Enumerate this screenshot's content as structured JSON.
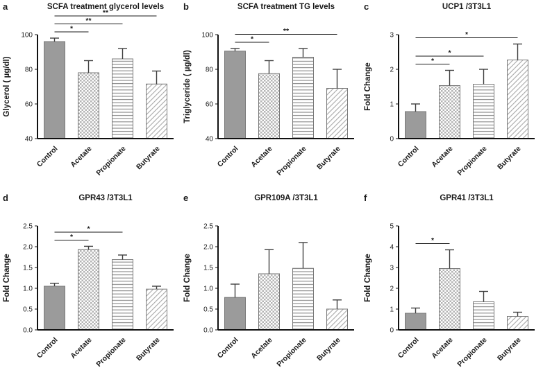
{
  "style": {
    "background": "#ffffff",
    "bar_gray": "#9b9b9b",
    "bar_stroke": "#787878",
    "pattern_gray": "#b4b4b4",
    "hline_gray": "#8f8f8f",
    "diag_gray": "#a8a8a8",
    "error_color": "#3f3f3f",
    "axis_color": "#111111",
    "text_color": "#1a1a1a"
  },
  "chart_data": [
    {
      "type": "bar",
      "letter": "a",
      "title": "SCFA treatment glycerol levels",
      "ylabel": "Glycerol ( µg/dl)",
      "xlabel": "",
      "categories": [
        "Control",
        "Acetate",
        "Propionate",
        "Butyrate"
      ],
      "patterns": [
        "solid",
        "checker",
        "hlines",
        "diag"
      ],
      "values": [
        96,
        78,
        86,
        71.5
      ],
      "errors": [
        2,
        7,
        6,
        7.5
      ],
      "ylim": [
        40,
        100
      ],
      "ytick_labels": [
        "40",
        "60",
        "80",
        "100"
      ],
      "significance": [
        {
          "from": 0,
          "to": 1,
          "label": "*"
        },
        {
          "from": 0,
          "to": 2,
          "label": "**"
        },
        {
          "from": 0,
          "to": 3,
          "label": "**"
        }
      ]
    },
    {
      "type": "bar",
      "letter": "b",
      "title": "SCFA treatment TG levels",
      "ylabel": "Triglyceride ( µg/dl)",
      "xlabel": "",
      "categories": [
        "Control",
        "Acetate",
        "Propionate",
        "Butyrate"
      ],
      "patterns": [
        "solid",
        "checker",
        "hlines",
        "diag"
      ],
      "values": [
        90.5,
        77.5,
        87,
        69
      ],
      "errors": [
        1.5,
        7.5,
        5,
        11
      ],
      "ylim": [
        40,
        100
      ],
      "ytick_labels": [
        "40",
        "60",
        "80",
        "100"
      ],
      "significance": [
        {
          "from": 0,
          "to": 1,
          "label": "*"
        },
        {
          "from": 0,
          "to": 3,
          "label": "**"
        }
      ]
    },
    {
      "type": "bar",
      "letter": "c",
      "title": "UCP1 /3T3L1",
      "ylabel": "Fold Change",
      "xlabel": "",
      "categories": [
        "Control",
        "Acetate",
        "Propionate",
        "Butyrate"
      ],
      "patterns": [
        "solid",
        "checker",
        "hlines",
        "diag"
      ],
      "values": [
        0.78,
        1.53,
        1.57,
        2.27
      ],
      "errors": [
        0.22,
        0.44,
        0.43,
        0.46
      ],
      "ylim": [
        0,
        3
      ],
      "ytick_labels": [
        "0",
        "1",
        "2",
        "3"
      ],
      "significance": [
        {
          "from": 0,
          "to": 1,
          "label": "*"
        },
        {
          "from": 0,
          "to": 2,
          "label": "*"
        },
        {
          "from": 0,
          "to": 3,
          "label": "*"
        }
      ]
    },
    {
      "type": "bar",
      "letter": "d",
      "title": "GPR43 /3T3L1",
      "ylabel": "Fold Change",
      "xlabel": "",
      "categories": [
        "Control",
        "Acetate",
        "Propionate",
        "Butyrate"
      ],
      "patterns": [
        "solid",
        "checker",
        "hlines",
        "diag"
      ],
      "values": [
        1.05,
        1.93,
        1.69,
        0.98
      ],
      "errors": [
        0.07,
        0.08,
        0.11,
        0.07
      ],
      "ylim": [
        0,
        2.5
      ],
      "ytick_labels": [
        "0.0",
        "0.5",
        "1.0",
        "1.5",
        "2.0",
        "2.5"
      ],
      "significance": [
        {
          "from": 0,
          "to": 1,
          "label": "*"
        },
        {
          "from": 0,
          "to": 2,
          "label": "*"
        }
      ]
    },
    {
      "type": "bar",
      "letter": "e",
      "title": "GPR109A /3T3L1",
      "ylabel": "Fold Change",
      "xlabel": "",
      "categories": [
        "Control",
        "Acetate",
        "Propionate",
        "Butyrate"
      ],
      "patterns": [
        "solid",
        "checker",
        "hlines",
        "diag"
      ],
      "values": [
        0.78,
        1.35,
        1.48,
        0.5
      ],
      "errors": [
        0.32,
        0.58,
        0.62,
        0.22
      ],
      "ylim": [
        0,
        2.5
      ],
      "ytick_labels": [
        "0.0",
        "0.5",
        "1.0",
        "1.5",
        "2.0",
        "2.5"
      ],
      "significance": []
    },
    {
      "type": "bar",
      "letter": "f",
      "title": "GPR41 /3T3L1",
      "ylabel": "Fold Change",
      "xlabel": "",
      "categories": [
        "Control",
        "Acetate",
        "Propionate",
        "Butyrate"
      ],
      "patterns": [
        "solid",
        "checker",
        "hlines",
        "diag"
      ],
      "values": [
        0.8,
        2.95,
        1.35,
        0.65
      ],
      "errors": [
        0.25,
        0.9,
        0.5,
        0.2
      ],
      "ylim": [
        0,
        5
      ],
      "ytick_labels": [
        "0",
        "1",
        "2",
        "3",
        "4",
        "5"
      ],
      "significance": [
        {
          "from": 0,
          "to": 1,
          "label": "*"
        }
      ]
    }
  ]
}
